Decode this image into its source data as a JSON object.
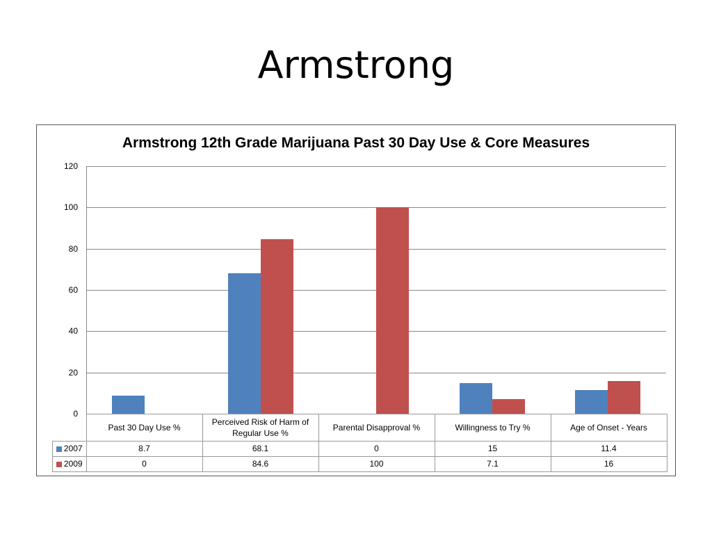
{
  "slide": {
    "title": "Armstrong"
  },
  "chart_data": {
    "type": "bar",
    "title": "Armstrong 12th Grade Marijuana Past 30 Day Use & Core Measures",
    "categories": [
      "Past 30 Day Use %",
      "Perceived Risk of Harm of Regular Use %",
      "Parental Disapproval %",
      "Willingness to Try %",
      "Age of Onset - Years"
    ],
    "series": [
      {
        "name": "2007",
        "color": "#4F81BD",
        "values": [
          8.7,
          68.1,
          0,
          15,
          11.4
        ]
      },
      {
        "name": "2009",
        "color": "#C0504D",
        "values": [
          0,
          84.6,
          100,
          7.1,
          16
        ]
      }
    ],
    "yticks": [
      0,
      20,
      40,
      60,
      80,
      100,
      120
    ],
    "ylim": [
      0,
      120
    ],
    "grid": true,
    "legend_position": "data-table",
    "xlabel": "",
    "ylabel": ""
  },
  "table": {
    "headers": [
      "Past 30 Day Use %",
      "Perceived Risk of Harm of Regular Use %",
      "Parental Disapproval %",
      "Willingness to Try %",
      "Age of Onset - Years"
    ],
    "rows": [
      {
        "label": "2007",
        "cells": [
          "8.7",
          "68.1",
          "0",
          "15",
          "11.4"
        ]
      },
      {
        "label": "2009",
        "cells": [
          "0",
          "84.6",
          "100",
          "7.1",
          "16"
        ]
      }
    ]
  }
}
